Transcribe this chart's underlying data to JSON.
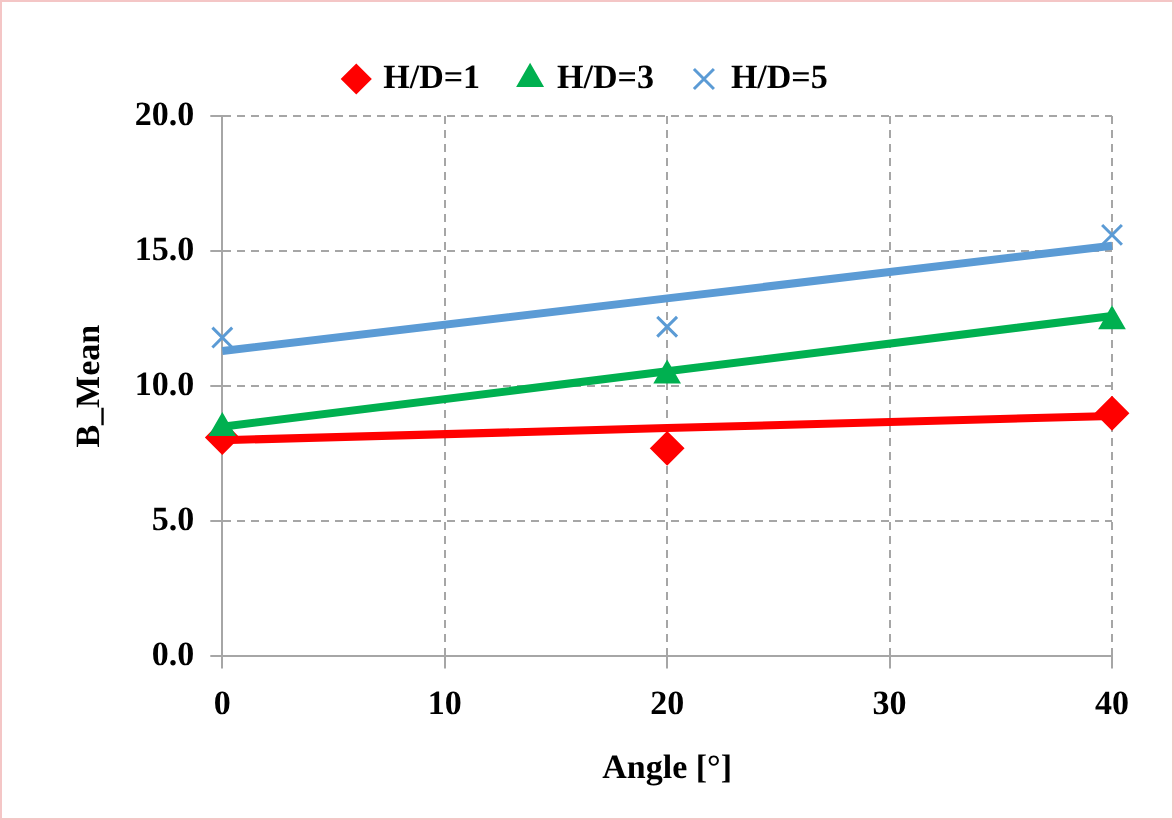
{
  "chart_data": {
    "type": "scatter",
    "xlabel": "Angle [°]",
    "ylabel": "B_Mean",
    "x": [
      0,
      20,
      40
    ],
    "series": [
      {
        "name": "H/D=1",
        "color": "#ff0000",
        "marker": "diamond",
        "values": [
          8.1,
          7.7,
          9.0
        ]
      },
      {
        "name": "H/D=3",
        "color": "#00b050",
        "marker": "triangle",
        "values": [
          8.45,
          10.4,
          12.4
        ]
      },
      {
        "name": "H/D=5",
        "color": "#5b9bd5",
        "marker": "cross",
        "values": [
          11.8,
          12.2,
          15.6
        ]
      },
      {
        "type": "line",
        "color": "#ff0000",
        "marker": "none",
        "values": [
          8.0,
          8.45,
          8.9
        ]
      },
      {
        "type": "line",
        "color": "#00b050",
        "marker": "none",
        "values": [
          8.5,
          10.55,
          12.6
        ]
      },
      {
        "type": "line",
        "color": "#5b9bd5",
        "marker": "none",
        "values": [
          11.3,
          13.25,
          15.2
        ]
      }
    ],
    "xlim": [
      0,
      40
    ],
    "xticks": [
      0,
      10,
      20,
      30,
      40
    ],
    "ylim": [
      0,
      20
    ],
    "yticks": [
      {
        "value": 0,
        "label": "0.0"
      },
      {
        "value": 5,
        "label": "5.0"
      },
      {
        "value": 10,
        "label": "10.0"
      },
      {
        "value": 15,
        "label": "15.0"
      },
      {
        "value": 20,
        "label": "20.0"
      }
    ],
    "grid": true,
    "legend": "top"
  }
}
